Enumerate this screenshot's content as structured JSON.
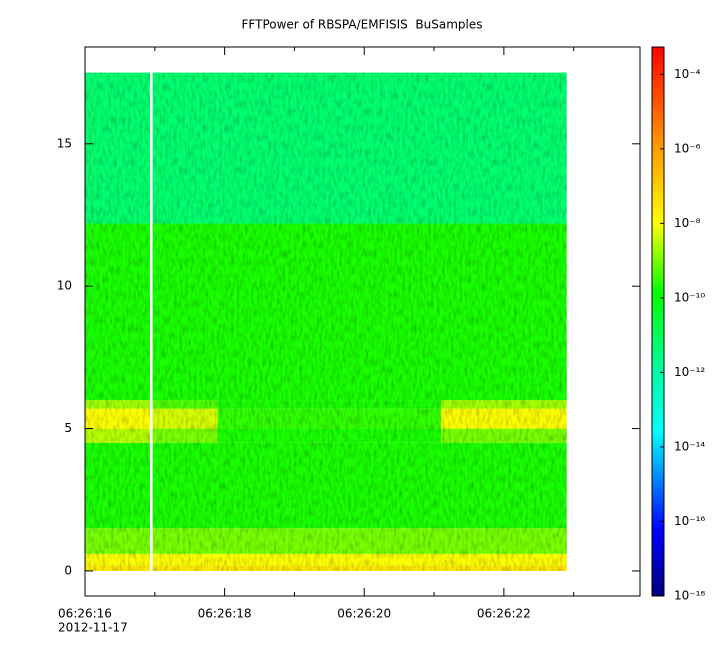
{
  "chart_data": {
    "type": "spectrogram",
    "title": "FFTPower of RBSPA/EMFISIS  BuSamples",
    "x_date_label": "2012-11-17",
    "xlim": [
      0,
      7.95
    ],
    "xticks": [
      {
        "value": 0,
        "label": "06:26:16"
      },
      {
        "value": 2,
        "label": "06:26:18"
      },
      {
        "value": 4,
        "label": "06:26:20"
      },
      {
        "value": 6,
        "label": "06:26:22"
      }
    ],
    "xminorticks": [
      1,
      3,
      5,
      7
    ],
    "ylim": [
      -0.88,
      18.4
    ],
    "yticks": [
      0,
      5,
      10,
      15
    ],
    "time_edges": [
      0,
      0.93,
      0.97,
      1.9,
      5.1,
      6.9
    ],
    "freq_edges": [
      0,
      0.2,
      0.6,
      1.5,
      4.5,
      5.0,
      5.7,
      6.0,
      12.2,
      17.5
    ],
    "z": [
      [
        3e-08,
        null,
        3e-08,
        3e-08,
        3e-08
      ],
      [
        1e-08,
        null,
        1e-08,
        1e-08,
        1e-08
      ],
      [
        1e-09,
        null,
        1e-09,
        1e-09,
        1e-09
      ],
      [
        2e-10,
        null,
        2e-10,
        2e-10,
        2e-10
      ],
      [
        3e-09,
        null,
        1e-09,
        2e-10,
        1e-09
      ],
      [
        1e-08,
        null,
        5e-09,
        3e-10,
        1e-08
      ],
      [
        2e-09,
        null,
        5e-10,
        2e-10,
        2e-09
      ],
      [
        2e-10,
        null,
        2e-10,
        2e-10,
        2e-10
      ],
      [
        5e-12,
        null,
        5e-12,
        5e-12,
        5e-12
      ]
    ],
    "zscale": "log",
    "zlim": [
      1e-18,
      0.00054
    ],
    "zticks": [
      {
        "value": 0.0001,
        "label": "10⁻⁴"
      },
      {
        "value": 1e-06,
        "label": "10⁻⁶"
      },
      {
        "value": 1e-08,
        "label": "10⁻⁸"
      },
      {
        "value": 1e-10,
        "label": "10⁻¹⁰"
      },
      {
        "value": 1e-12,
        "label": "10⁻¹²"
      },
      {
        "value": 1e-14,
        "label": "10⁻¹⁴"
      },
      {
        "value": 1e-16,
        "label": "10⁻¹⁶"
      },
      {
        "value": 1e-18,
        "label": "10⁻¹⁸"
      }
    ],
    "colormap": [
      [
        0,
        "#00007f"
      ],
      [
        0.12,
        "#0000ff"
      ],
      [
        0.3,
        "#00ffff"
      ],
      [
        0.42,
        "#00ff99"
      ],
      [
        0.55,
        "#00ff00"
      ],
      [
        0.68,
        "#ffff00"
      ],
      [
        0.82,
        "#ff9900"
      ],
      [
        1,
        "#ff0000"
      ]
    ]
  }
}
